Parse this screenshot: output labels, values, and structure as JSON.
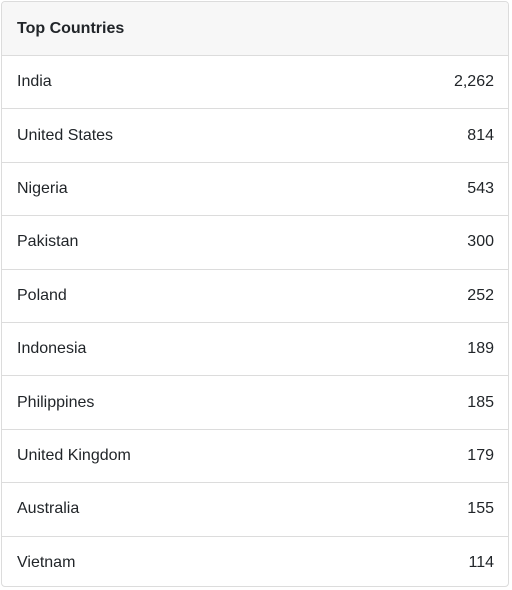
{
  "panel": {
    "title": "Top Countries",
    "rows": [
      {
        "country": "India",
        "count": "2,262"
      },
      {
        "country": "United States",
        "count": "814"
      },
      {
        "country": "Nigeria",
        "count": "543"
      },
      {
        "country": "Pakistan",
        "count": "300"
      },
      {
        "country": "Poland",
        "count": "252"
      },
      {
        "country": "Indonesia",
        "count": "189"
      },
      {
        "country": "Philippines",
        "count": "185"
      },
      {
        "country": "United Kingdom",
        "count": "179"
      },
      {
        "country": "Australia",
        "count": "155"
      },
      {
        "country": "Vietnam",
        "count": "114"
      }
    ]
  }
}
